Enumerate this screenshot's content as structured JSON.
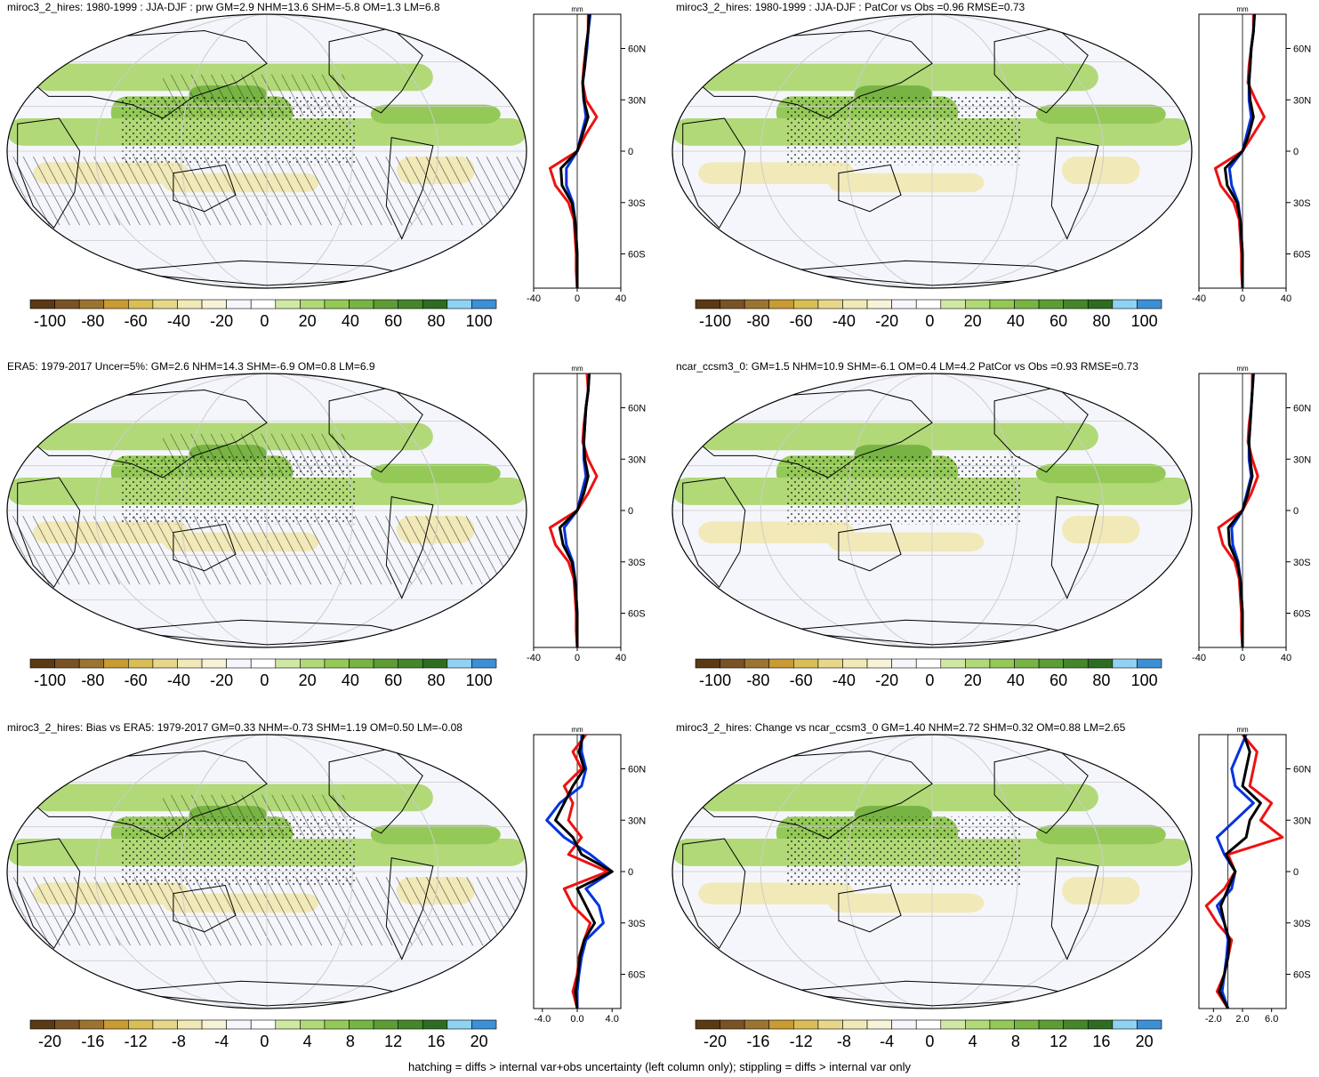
{
  "caption": "hatching = diffs > internal var+obs uncertainty (left column only); stippling = diffs > internal var only",
  "colors": {
    "line_model": "#0033dd",
    "line_obs": "#ee1111",
    "line_black": "#000000",
    "palette": [
      "#5a3a14",
      "#7a5325",
      "#9c7432",
      "#c89b33",
      "#d8be55",
      "#e6d78a",
      "#f1e9b8",
      "#f7f3d8",
      "#f4f6fb",
      "#ffffff",
      "#cfe8a4",
      "#b1d978",
      "#94c957",
      "#78b444",
      "#5e9d36",
      "#45862b",
      "#2e6d21",
      "#8fd2f2",
      "#3d8fd6"
    ]
  },
  "chart_data": [
    {
      "type": "map",
      "title": "miroc3_2_hires: 1980-1999 : JJA-DJF : prw GM=2.9 NHM=13.6 SHM=-5.8 OM=1.3 LM=6.8",
      "colorbar_labels": [
        "-100",
        "-80",
        "-60",
        "-40",
        "-20",
        "0",
        "20",
        "40",
        "60",
        "80",
        "100"
      ],
      "hatching": true,
      "profile": {
        "unit": "mm",
        "xlim": [
          -40,
          40
        ],
        "xticks": [
          "-40",
          "0",
          "40"
        ],
        "yticks": [
          "60N",
          "30N",
          "0",
          "30S",
          "60S"
        ],
        "lat": [
          80,
          70,
          60,
          50,
          40,
          30,
          20,
          10,
          0,
          -10,
          -20,
          -30,
          -40,
          -50,
          -60,
          -70,
          -80
        ],
        "series": [
          {
            "color": "red",
            "values": [
              10,
              10,
              8,
              6,
              5,
              8,
              18,
              8,
              0,
              -25,
              -20,
              -8,
              -3,
              -2,
              -1,
              -1,
              0
            ]
          },
          {
            "color": "blue",
            "values": [
              12,
              10,
              9,
              7,
              5,
              6,
              8,
              4,
              0,
              -10,
              -10,
              -4,
              -2,
              -1,
              0,
              0,
              0
            ]
          },
          {
            "color": "black",
            "values": [
              11,
              10,
              8,
              7,
              5,
              6,
              10,
              5,
              0,
              -15,
              -14,
              -5,
              -2,
              -1,
              0,
              0,
              0
            ]
          }
        ]
      }
    },
    {
      "type": "map",
      "title": "miroc3_2_hires: 1980-1999 : JJA-DJF : PatCor vs Obs =0.96 RMSE=0.73",
      "colorbar_labels": [
        "-100",
        "-80",
        "-60",
        "-40",
        "-20",
        "0",
        "20",
        "40",
        "60",
        "80",
        "100"
      ],
      "hatching": false,
      "profile": {
        "unit": "mm",
        "xlim": [
          -40,
          40
        ],
        "xticks": [
          "-40",
          "0",
          "40"
        ],
        "yticks": [
          "60N",
          "30N",
          "0",
          "30S",
          "60S"
        ],
        "lat": [
          80,
          70,
          60,
          50,
          40,
          30,
          20,
          10,
          0,
          -10,
          -20,
          -30,
          -40,
          -50,
          -60,
          -70,
          -80
        ],
        "series": [
          {
            "color": "red",
            "values": [
              10,
              10,
              8,
              6,
              5,
              12,
              20,
              10,
              0,
              -25,
              -20,
              -8,
              -3,
              -2,
              -1,
              -1,
              0
            ]
          },
          {
            "color": "blue",
            "values": [
              11,
              10,
              8,
              7,
              6,
              6,
              8,
              4,
              0,
              -12,
              -10,
              -4,
              -2,
              -1,
              0,
              0,
              0
            ]
          },
          {
            "color": "black",
            "values": [
              11,
              10,
              8,
              7,
              6,
              7,
              10,
              6,
              0,
              -16,
              -14,
              -5,
              -2,
              -1,
              0,
              0,
              0
            ]
          }
        ]
      }
    },
    {
      "type": "map",
      "title": "ERA5: 1979-2017 Uncer=5%: GM=2.6 NHM=14.3 SHM=-6.9 OM=0.8 LM=6.9",
      "colorbar_labels": [
        "-100",
        "-80",
        "-60",
        "-40",
        "-20",
        "0",
        "20",
        "40",
        "60",
        "80",
        "100"
      ],
      "hatching": true,
      "profile": {
        "unit": "mm",
        "xlim": [
          -40,
          40
        ],
        "xticks": [
          "-40",
          "0",
          "40"
        ],
        "yticks": [
          "60N",
          "30N",
          "0",
          "30S",
          "60S"
        ],
        "lat": [
          80,
          70,
          60,
          50,
          40,
          30,
          20,
          10,
          0,
          -10,
          -20,
          -30,
          -40,
          -50,
          -60,
          -70,
          -80
        ],
        "series": [
          {
            "color": "red",
            "values": [
              9,
              10,
              8,
              6,
              5,
              10,
              18,
              10,
              0,
              -25,
              -20,
              -8,
              -3,
              -2,
              -1,
              -1,
              0
            ]
          },
          {
            "color": "blue",
            "values": [
              11,
              10,
              8,
              7,
              6,
              6,
              8,
              4,
              0,
              -12,
              -10,
              -4,
              -2,
              -1,
              0,
              0,
              0
            ]
          },
          {
            "color": "black",
            "values": [
              11,
              10,
              8,
              7,
              6,
              7,
              10,
              6,
              0,
              -16,
              -13,
              -5,
              -2,
              -1,
              0,
              0,
              0
            ]
          }
        ]
      }
    },
    {
      "type": "map",
      "title": "ncar_ccsm3_0: GM=1.5 NHM=10.9 SHM=-6.1 OM=0.4 LM=4.2 PatCor vs Obs =0.93 RMSE=0.73",
      "colorbar_labels": [
        "-100",
        "-80",
        "-60",
        "-40",
        "-20",
        "0",
        "20",
        "40",
        "60",
        "80",
        "100"
      ],
      "hatching": false,
      "profile": {
        "unit": "mm",
        "xlim": [
          -40,
          40
        ],
        "xticks": [
          "-40",
          "0",
          "40"
        ],
        "yticks": [
          "60N",
          "30N",
          "0",
          "30S",
          "60S"
        ],
        "lat": [
          80,
          70,
          60,
          50,
          40,
          30,
          20,
          10,
          0,
          -10,
          -20,
          -30,
          -40,
          -50,
          -60,
          -70,
          -80
        ],
        "series": [
          {
            "color": "red",
            "values": [
              9,
              9,
              8,
              6,
              5,
              9,
              14,
              8,
              0,
              -22,
              -18,
              -7,
              -3,
              -2,
              -1,
              -1,
              0
            ]
          },
          {
            "color": "blue",
            "values": [
              10,
              9,
              8,
              7,
              6,
              6,
              8,
              4,
              0,
              -10,
              -9,
              -4,
              -2,
              -1,
              0,
              0,
              0
            ]
          },
          {
            "color": "black",
            "values": [
              10,
              9,
              8,
              7,
              6,
              7,
              9,
              5,
              0,
              -13,
              -12,
              -5,
              -2,
              -1,
              0,
              0,
              0
            ]
          }
        ]
      }
    },
    {
      "type": "map",
      "title": "miroc3_2_hires: Bias vs ERA5: 1979-2017 GM=0.33 NHM=-0.73 SHM=1.19 OM=0.50 LM=-0.08",
      "colorbar_labels": [
        "-20",
        "-16",
        "-12",
        "-8",
        "-4",
        "0",
        "4",
        "8",
        "12",
        "16",
        "20"
      ],
      "hatching": true,
      "profile": {
        "unit": "mm",
        "xlim": [
          -5,
          5
        ],
        "xticks": [
          "-4.0",
          "0.0",
          "4.0"
        ],
        "yticks": [
          "60N",
          "30N",
          "0",
          "30S",
          "60S"
        ],
        "lat": [
          80,
          70,
          60,
          50,
          40,
          30,
          20,
          10,
          0,
          -10,
          -20,
          -30,
          -40,
          -50,
          -60,
          -70,
          -80
        ],
        "series": [
          {
            "color": "red",
            "values": [
              1.0,
              -0.5,
              0.5,
              -1.5,
              -0.5,
              -1.0,
              0.5,
              -1.0,
              3.5,
              -1.5,
              -0.5,
              1.5,
              0.8,
              0.2,
              0.0,
              -0.5,
              0.0
            ]
          },
          {
            "color": "blue",
            "values": [
              0.5,
              0.5,
              1.0,
              0.5,
              -2.0,
              -3.5,
              -1.5,
              1.5,
              4.0,
              1.0,
              2.5,
              3.0,
              1.0,
              0.5,
              0.2,
              0.0,
              0.0
            ]
          },
          {
            "color": "black",
            "values": [
              0.7,
              0.2,
              0.8,
              -0.5,
              -1.5,
              -2.5,
              -0.5,
              0.5,
              4.0,
              0.0,
              1.0,
              2.0,
              0.8,
              0.3,
              0.1,
              -0.2,
              0.0
            ]
          }
        ]
      }
    },
    {
      "type": "map",
      "title": "miroc3_2_hires: Change vs ncar_ccsm3_0 GM=1.40 NHM=2.72 SHM=0.32 OM=0.88 LM=2.65",
      "colorbar_labels": [
        "-20",
        "-16",
        "-12",
        "-8",
        "-4",
        "0",
        "4",
        "8",
        "12",
        "16",
        "20"
      ],
      "hatching": false,
      "profile": {
        "unit": "mm",
        "xlim": [
          -4,
          8
        ],
        "xticks": [
          "-2.0",
          "2.0",
          "6.0"
        ],
        "yticks": [
          "60N",
          "30N",
          "0",
          "30S",
          "60S"
        ],
        "lat": [
          80,
          70,
          60,
          50,
          40,
          30,
          20,
          10,
          0,
          -10,
          -20,
          -30,
          -40,
          -50,
          -60,
          -70,
          -80
        ],
        "series": [
          {
            "color": "red",
            "values": [
              2.0,
              4.0,
              3.5,
              3.0,
              6.0,
              4.5,
              7.5,
              0.0,
              1.0,
              -0.5,
              -3.0,
              -1.5,
              0.5,
              0.0,
              -0.5,
              -1.5,
              0.0
            ]
          },
          {
            "color": "blue",
            "values": [
              2.5,
              1.5,
              0.5,
              1.0,
              3.5,
              1.0,
              -1.5,
              -0.5,
              1.0,
              0.5,
              -1.5,
              -0.5,
              0.0,
              -0.2,
              -0.5,
              -0.8,
              0.0
            ]
          },
          {
            "color": "black",
            "values": [
              2.2,
              3.0,
              2.5,
              2.0,
              4.5,
              3.0,
              2.5,
              -0.3,
              1.0,
              0.0,
              -1.0,
              -0.5,
              0.2,
              0.0,
              -0.5,
              -1.2,
              0.0
            ]
          }
        ]
      }
    }
  ]
}
